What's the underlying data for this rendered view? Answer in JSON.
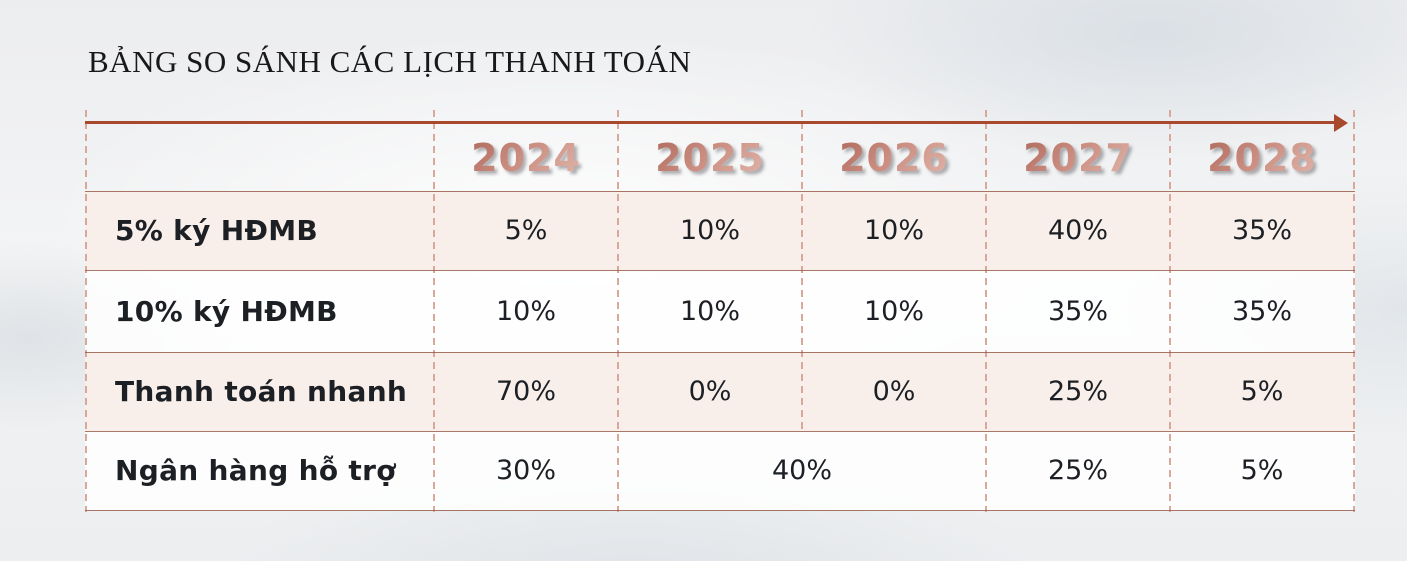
{
  "title": "BẢNG SO SÁNH CÁC LỊCH THANH TOÁN",
  "table": {
    "years": [
      "2024",
      "2025",
      "2026",
      "2027",
      "2028"
    ],
    "rows": [
      {
        "label": "5% ký HĐMB",
        "values": [
          "5%",
          "10%",
          "10%",
          "40%",
          "35%"
        ]
      },
      {
        "label": "10% ký HĐMB",
        "values": [
          "10%",
          "10%",
          "10%",
          "35%",
          "35%"
        ]
      },
      {
        "label": "Thanh toán nhanh",
        "values": [
          "70%",
          "0%",
          "0%",
          "25%",
          "5%"
        ]
      },
      {
        "label": "Ngân hàng hỗ trợ",
        "values": [
          "30%",
          "40%",
          "25%",
          "5%"
        ],
        "merged": "value 40% spans years 2025-2026"
      }
    ]
  },
  "colors": {
    "accent_arrow": "#a8482c",
    "separator_line": "#945642",
    "dashed_line": "#d9a89c",
    "row_alt_background": "#f8efea",
    "year_gradient_start": "#a96355",
    "year_gradient_end": "#e5bcb2",
    "text": "#1c1f24",
    "title_text": "#191919"
  }
}
